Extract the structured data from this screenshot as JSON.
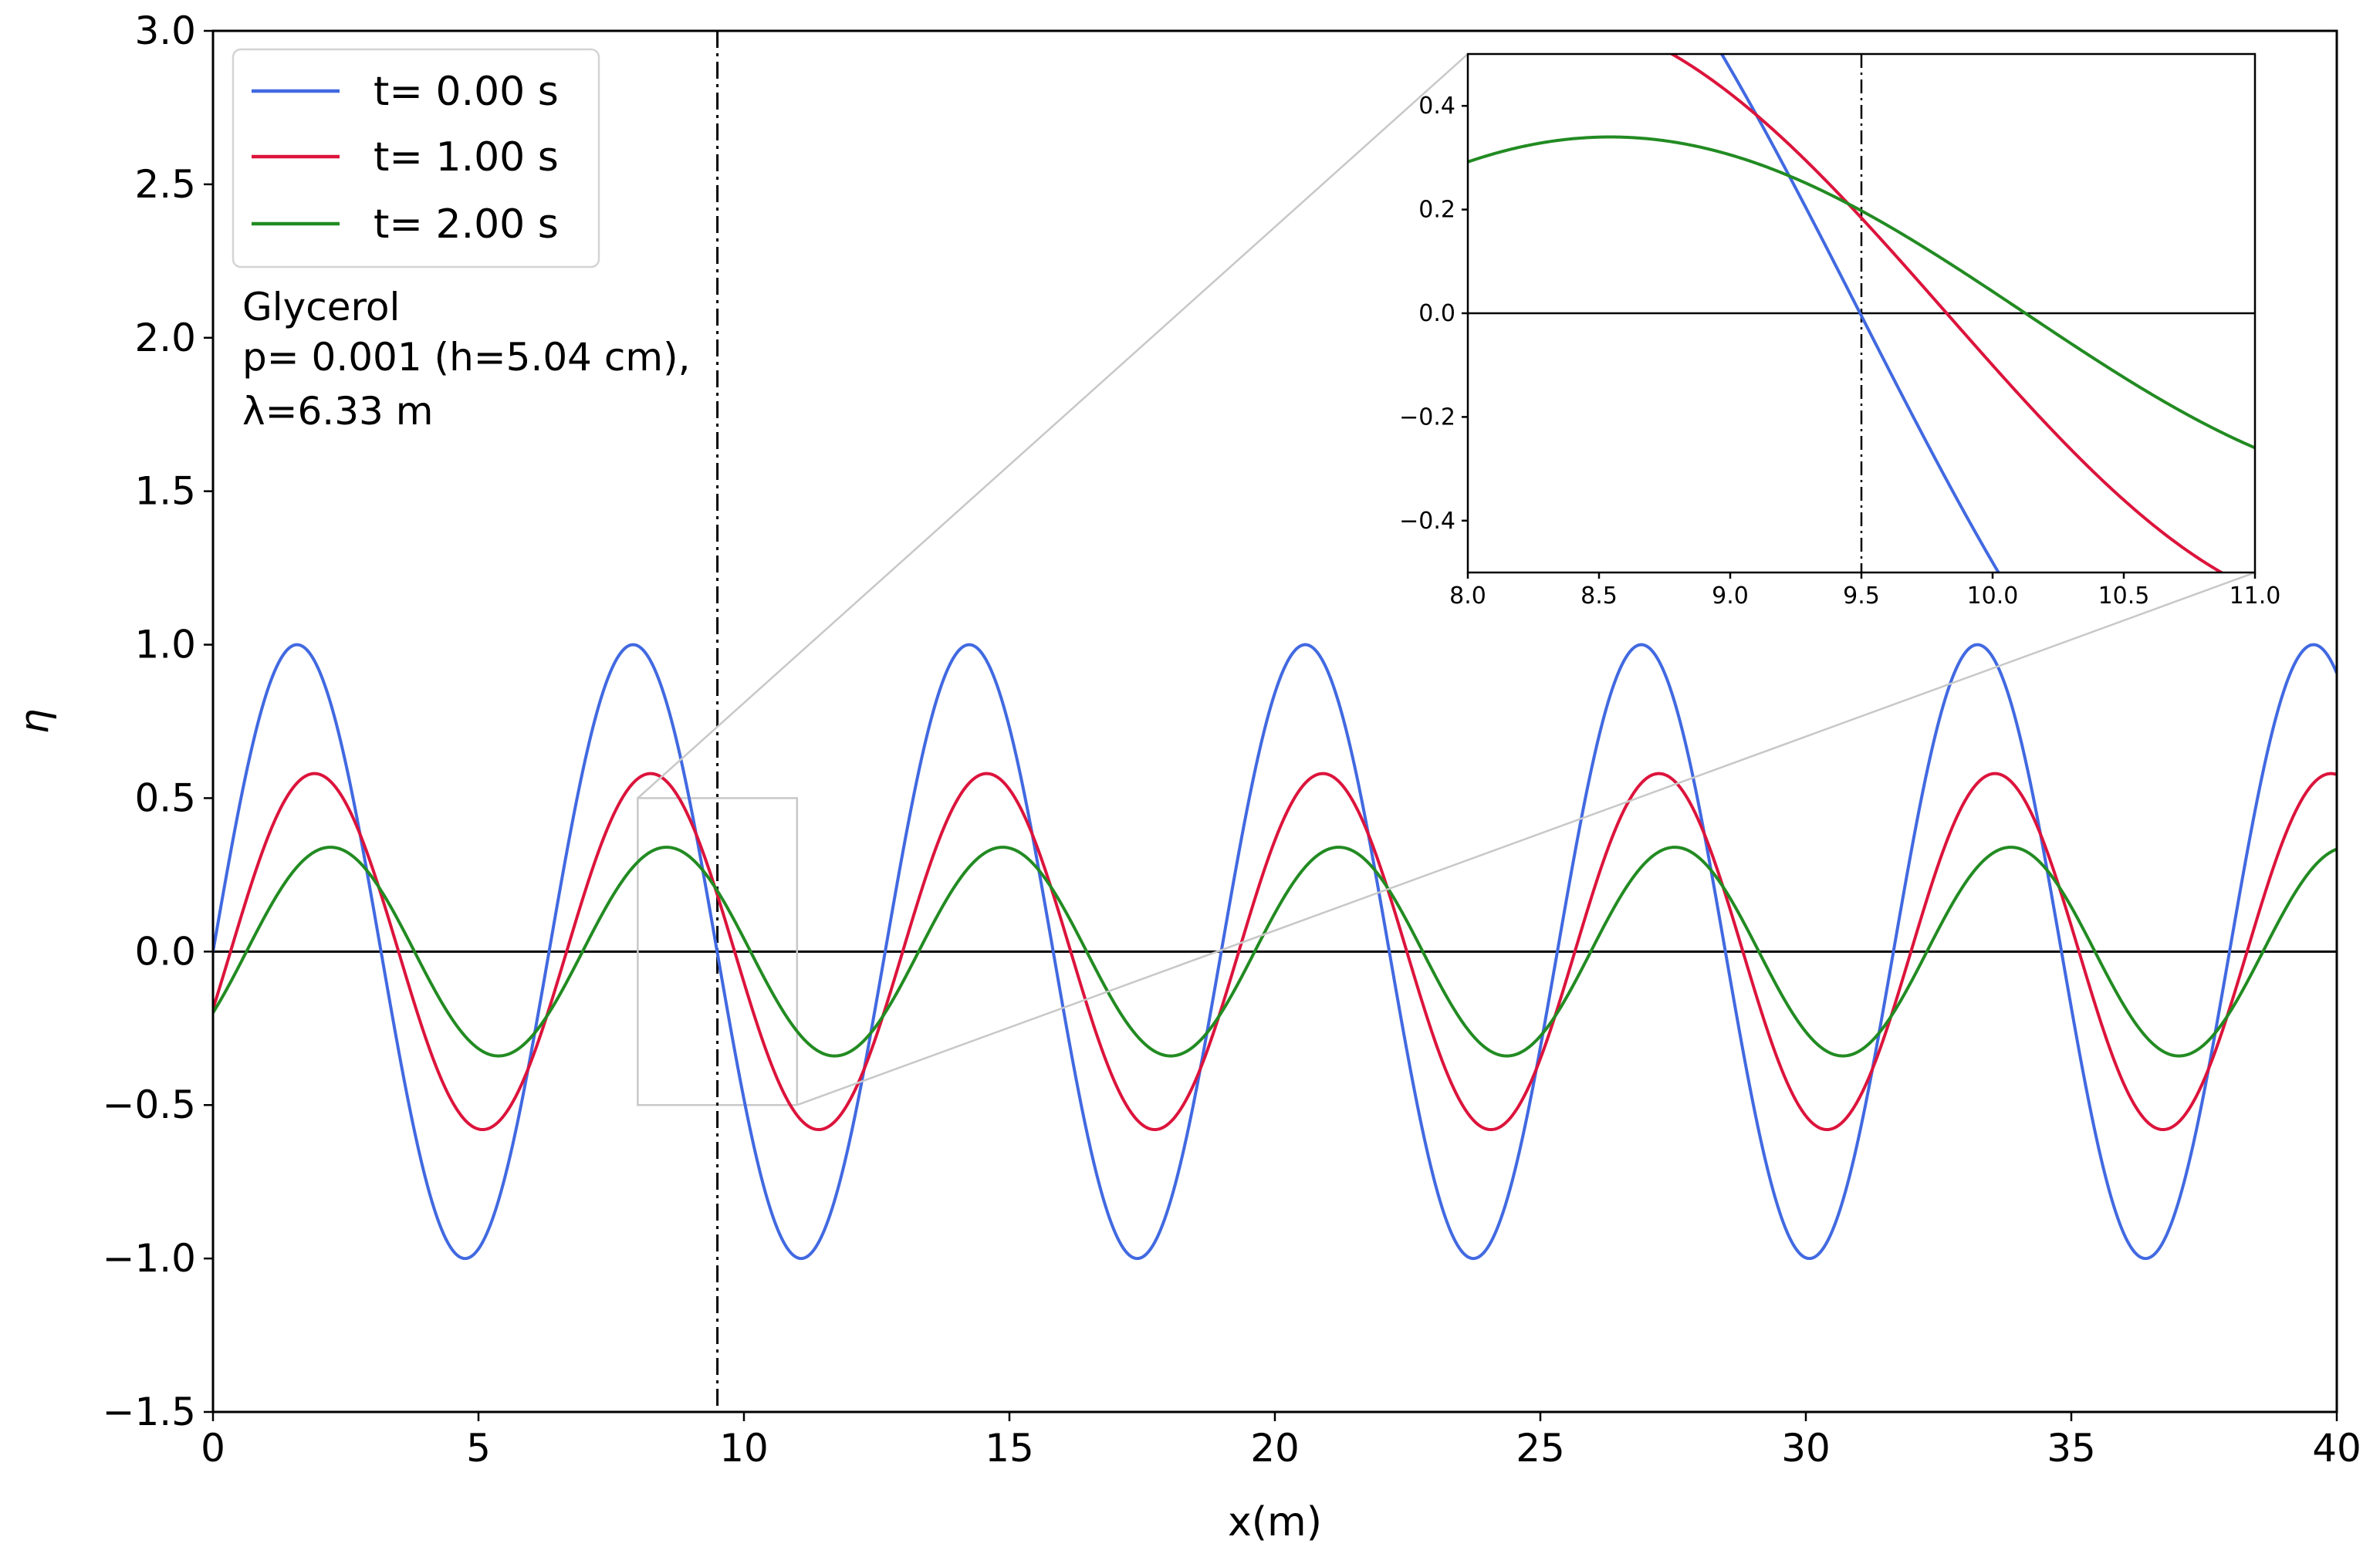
{
  "chart_data": [
    {
      "type": "line",
      "role": "main",
      "xlabel": "x(m)",
      "ylabel": "η",
      "xlim": [
        0,
        40
      ],
      "ylim": [
        -1.5,
        3.0
      ],
      "xticks": [
        0,
        5,
        10,
        15,
        20,
        25,
        30,
        35,
        40
      ],
      "xtick_labels": [
        "0",
        "5",
        "10",
        "15",
        "20",
        "25",
        "30",
        "35",
        "40"
      ],
      "yticks": [
        -1.5,
        -1.0,
        -0.5,
        0.0,
        0.5,
        1.0,
        1.5,
        2.0,
        2.5,
        3.0
      ],
      "ytick_labels": [
        "−1.5",
        "−1.0",
        "−0.5",
        "0.0",
        "0.5",
        "1.0",
        "1.5",
        "2.0",
        "2.5",
        "3.0"
      ],
      "legend": {
        "placement": "top-left",
        "entries": [
          "t= 0.00 s",
          "t= 1.00 s",
          "t= 2.00 s"
        ]
      },
      "annotation_lines": [
        "Glycerol",
        "p= 0.001 (h=5.04 cm),",
        "λ=6.33 m"
      ],
      "wavelength_m": 6.33,
      "probe_x": 9.5,
      "zero_line": 0.0,
      "zoom_region": {
        "xlim": [
          8.0,
          11.0
        ],
        "ylim": [
          -0.5,
          0.5
        ]
      },
      "series": [
        {
          "name": "t= 0.00 s",
          "color": "#4169e1",
          "amplitude": 1.0,
          "phase_shift_m": 0.0
        },
        {
          "name": "t= 1.00 s",
          "color": "#dc143c",
          "amplitude": 0.58,
          "phase_shift_m": 0.33
        },
        {
          "name": "t= 2.00 s",
          "color": "#228b22",
          "amplitude": 0.34,
          "phase_shift_m": 0.63
        }
      ]
    },
    {
      "type": "line",
      "role": "inset",
      "xlim": [
        8.0,
        11.0
      ],
      "ylim": [
        -0.5,
        0.5
      ],
      "xticks": [
        8.0,
        8.5,
        9.0,
        9.5,
        10.0,
        10.5,
        11.0
      ],
      "xtick_labels": [
        "8.0",
        "8.5",
        "9.0",
        "9.5",
        "10.0",
        "10.5",
        "11.0"
      ],
      "yticks": [
        -0.4,
        -0.2,
        0.0,
        0.2,
        0.4
      ],
      "ytick_labels": [
        "−0.4",
        "−0.2",
        "0.0",
        "0.2",
        "0.4"
      ],
      "probe_x": 9.5
    }
  ]
}
